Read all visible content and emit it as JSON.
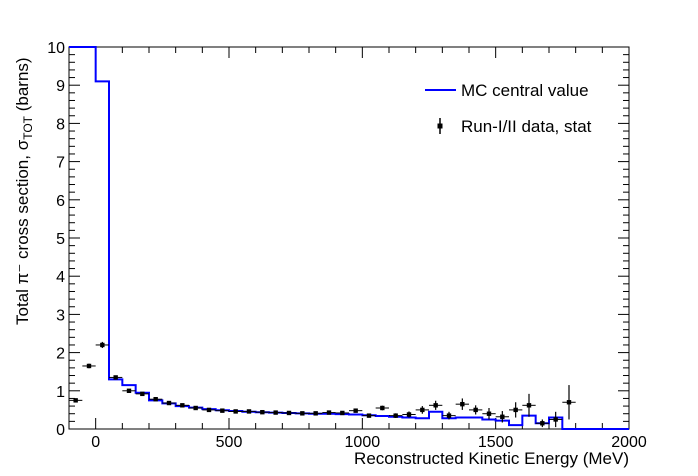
{
  "chart_data": {
    "type": "line",
    "title": "",
    "xlabel": "Reconstructed Kinetic Energy (MeV)",
    "ylabel_main": "Total π⁻ cross section, σ",
    "ylabel_sub": "TOT",
    "ylabel_tail": " (barns)",
    "xlim": [
      -100,
      2000
    ],
    "ylim": [
      0,
      10
    ],
    "x_ticks": [
      0,
      500,
      1000,
      1500,
      2000
    ],
    "x_tick_labels": [
      "0",
      "500",
      "1000",
      "1500",
      "2000"
    ],
    "y_ticks": [
      0,
      1,
      2,
      3,
      4,
      5,
      6,
      7,
      8,
      9,
      10
    ],
    "y_tick_labels": [
      "0",
      "1",
      "2",
      "3",
      "4",
      "5",
      "6",
      "7",
      "8",
      "9",
      "10"
    ],
    "legend_position": "top-right",
    "series": [
      {
        "name": "MC central value",
        "kind": "histogram",
        "color": "#0000ff",
        "bin_edges": [
          -100,
          -50,
          0,
          50,
          100,
          150,
          200,
          250,
          300,
          350,
          400,
          450,
          500,
          550,
          600,
          650,
          700,
          750,
          800,
          850,
          900,
          950,
          1000,
          1050,
          1100,
          1150,
          1200,
          1250,
          1300,
          1350,
          1400,
          1450,
          1500,
          1550,
          1600,
          1650,
          1700,
          1750,
          1800,
          1850,
          1900,
          1950,
          2000
        ],
        "values": [
          10,
          10,
          9.1,
          1.3,
          1.15,
          0.95,
          0.75,
          0.67,
          0.6,
          0.56,
          0.52,
          0.49,
          0.47,
          0.45,
          0.44,
          0.43,
          0.42,
          0.41,
          0.4,
          0.4,
          0.39,
          0.38,
          0.36,
          0.34,
          0.32,
          0.3,
          0.28,
          0.45,
          0.28,
          0.3,
          0.3,
          0.25,
          0.22,
          0.1,
          0.35,
          0.15,
          0.3,
          0.0,
          0.0,
          0.0,
          0.0,
          0.0
        ]
      },
      {
        "name": "Run-I/II data, stat",
        "kind": "points",
        "color": "#000000",
        "x": [
          -75,
          -25,
          25,
          75,
          125,
          175,
          225,
          275,
          325,
          375,
          425,
          475,
          525,
          575,
          625,
          675,
          725,
          775,
          825,
          875,
          925,
          975,
          1025,
          1075,
          1125,
          1175,
          1225,
          1275,
          1325,
          1375,
          1425,
          1475,
          1525,
          1575,
          1625,
          1675,
          1725,
          1775
        ],
        "y": [
          0.75,
          1.65,
          2.2,
          1.35,
          1.0,
          0.92,
          0.78,
          0.68,
          0.62,
          0.55,
          0.5,
          0.48,
          0.46,
          0.46,
          0.44,
          0.43,
          0.42,
          0.41,
          0.41,
          0.43,
          0.42,
          0.48,
          0.35,
          0.55,
          0.35,
          0.38,
          0.5,
          0.62,
          0.35,
          0.65,
          0.5,
          0.4,
          0.32,
          0.5,
          0.62,
          0.15,
          0.25,
          0.7
        ],
        "yerr": [
          0.05,
          0.06,
          0.08,
          0.05,
          0.04,
          0.04,
          0.03,
          0.03,
          0.03,
          0.03,
          0.03,
          0.03,
          0.03,
          0.03,
          0.03,
          0.03,
          0.03,
          0.03,
          0.04,
          0.04,
          0.05,
          0.05,
          0.05,
          0.06,
          0.06,
          0.08,
          0.1,
          0.12,
          0.1,
          0.15,
          0.12,
          0.15,
          0.15,
          0.2,
          0.3,
          0.1,
          0.2,
          0.45
        ]
      }
    ]
  }
}
